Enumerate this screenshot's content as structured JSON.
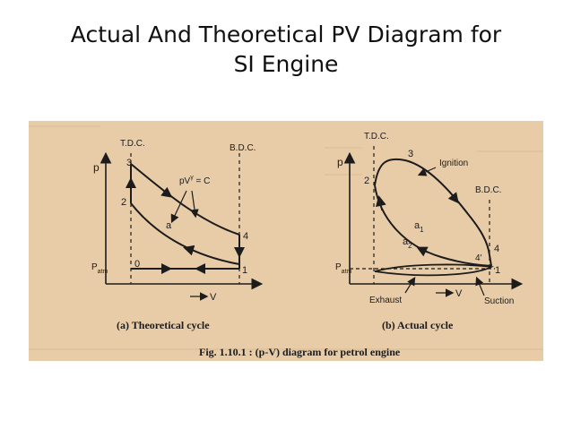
{
  "slide": {
    "title_line1": "Actual And Theoretical PV Diagram for",
    "title_line2": "SI Engine"
  },
  "figure": {
    "caption": "Fig. 1.10.1 : (p-V) diagram for petrol engine",
    "theoretical": {
      "subcaption": "(a) Theoretical cycle",
      "tdc": "T.D.C.",
      "bdc": "B.D.C.",
      "p_axis": "p",
      "v_axis": "V",
      "patm": "P",
      "patm_sub": "atm",
      "law_main": "pV",
      "law_exp": "γ",
      "law_rhs": " = C",
      "pt0": "0",
      "pt1": "1",
      "pt2": "2",
      "pt3": "3",
      "pt4": "4",
      "pta": "a"
    },
    "actual": {
      "subcaption": "(b) Actual cycle",
      "tdc": "T.D.C.",
      "bdc": "B.D.C.",
      "p_axis": "p",
      "v_axis": "V",
      "patm": "P",
      "patm_sub": "atm",
      "ignition": "Ignition",
      "exhaust": "Exhaust",
      "suction": "Suction",
      "pt1": "1",
      "pt2": "2",
      "pt3": "3",
      "pt4": "4",
      "pt4p": "4'",
      "a1_main": "a",
      "a1_sub": "1",
      "a2_main": "a",
      "a2_sub": "2"
    }
  }
}
